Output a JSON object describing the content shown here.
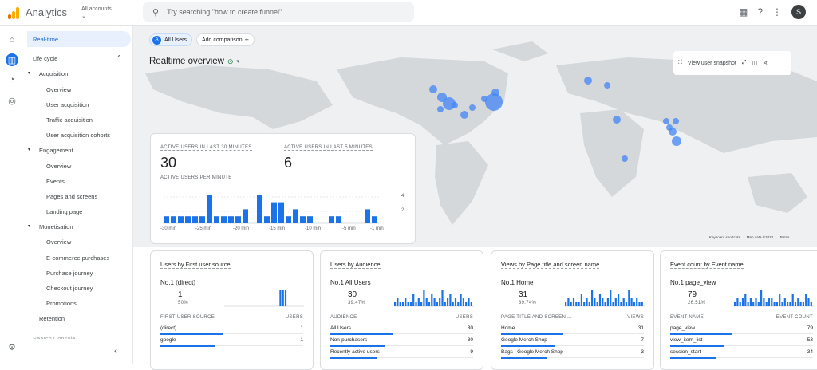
{
  "app": {
    "title": "Analytics",
    "account": "All accounts",
    "search_placeholder": "Try searching \"how to create funnel\"",
    "avatar": "S"
  },
  "sidebar": {
    "realtime": "Real-time",
    "lifecycle": "Life cycle",
    "acquisition": "Acquisition",
    "overview": "Overview",
    "user_acquisition": "User acquisition",
    "traffic_acquisition": "Traffic acquisition",
    "user_acquisition_cohorts": "User acquisition cohorts",
    "engagement": "Engagement",
    "overview2": "Overview",
    "events": "Events",
    "pages_screens": "Pages and screens",
    "landing_page": "Landing page",
    "monetisation": "Monetisation",
    "overview3": "Overview",
    "ecommerce": "E-commerce purchases",
    "purchase_journey": "Purchase journey",
    "checkout_journey": "Checkout journey",
    "promotions": "Promotions",
    "retention": "Retention",
    "search_console": "Search Console"
  },
  "header": {
    "all_users_badge": "A",
    "all_users": "All Users",
    "add_comparison": "Add comparison",
    "title": "Realtime overview",
    "snapshot": "View user snapshot",
    "footer_shortcuts": "Keyboard shortcuts",
    "footer_mapdata": "Map data ©2024",
    "footer_terms": "Terms"
  },
  "active_card": {
    "label30": "ACTIVE USERS IN LAST 30 MINUTES",
    "value30": "30",
    "label5": "ACTIVE USERS IN LAST 5 MINUTES",
    "value5": "6",
    "per_minute": "ACTIVE USERS PER MINUTE",
    "yticks": [
      "4",
      "2"
    ],
    "xticks": [
      "-30 min",
      "-25 min",
      "-20 min",
      "-15 min",
      "-10 min",
      "-5 min",
      "-1 min"
    ],
    "bars": [
      1,
      1,
      1,
      1,
      1,
      1,
      4,
      1,
      1,
      1,
      1,
      2,
      0,
      4,
      1,
      3,
      3,
      1,
      2,
      1,
      1,
      0,
      0,
      1,
      1,
      0,
      0,
      0,
      2,
      1,
      1
    ]
  },
  "cards": [
    {
      "title": "Users by First user source",
      "no1": "No.1 (direct)",
      "value": "1",
      "pct": "50%",
      "col1": "FIRST USER SOURCE",
      "col2": "USERS",
      "rows": [
        [
          "(direct)",
          "1"
        ],
        [
          "google",
          "1"
        ]
      ]
    },
    {
      "title": "Users by Audience",
      "no1": "No.1  All Users",
      "value": "30",
      "pct": "39.47%",
      "col1": "AUDIENCE",
      "col2": "USERS",
      "rows": [
        [
          "All Users",
          "30"
        ],
        [
          "Non-purchasers",
          "30"
        ],
        [
          "Recently active users",
          "9"
        ]
      ]
    },
    {
      "title": "Views by Page title and screen name",
      "no1": "No.1  Home",
      "value": "31",
      "pct": "39.74%",
      "col1": "PAGE TITLE AND SCREEN ...",
      "col2": "VIEWS",
      "rows": [
        [
          "Home",
          "31"
        ],
        [
          "Google Merch Shop",
          "7"
        ],
        [
          "Bags | Google Merch Shop",
          "3"
        ]
      ]
    },
    {
      "title": "Event count by Event name",
      "no1": "No.1  page_view",
      "value": "79",
      "pct": "26.51%",
      "col1": "EVENT NAME",
      "col2": "EVENT COUNT",
      "rows": [
        [
          "page_view",
          "79"
        ],
        [
          "view_item_list",
          "53"
        ],
        [
          "session_start",
          "34"
        ]
      ]
    }
  ]
}
